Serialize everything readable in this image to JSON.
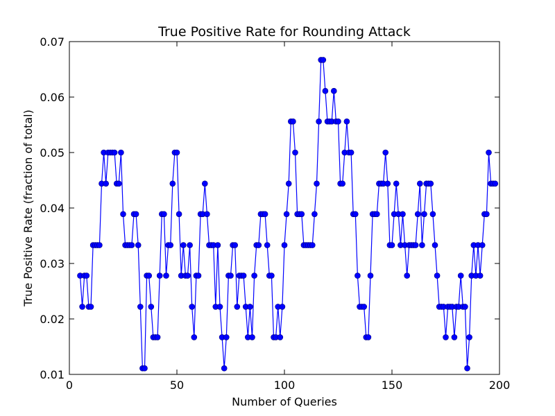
{
  "chart_data": {
    "type": "line",
    "title": "True Positive Rate for Rounding Attack",
    "xlabel": "Number of Queries",
    "ylabel": "True Positive Rate (fraction of total)",
    "xlim": [
      0,
      200
    ],
    "ylim": [
      0.01,
      0.07
    ],
    "xticks": [
      "0",
      "50",
      "100",
      "150",
      "200"
    ],
    "yticks": [
      "0.01",
      "0.02",
      "0.03",
      "0.04",
      "0.05",
      "0.06",
      "0.07"
    ],
    "grid": false,
    "legend": false,
    "marker": "circle",
    "color": "#0000ff",
    "x_start": 5,
    "x_step": 1,
    "values": [
      0.0278,
      0.0222,
      0.0278,
      0.0278,
      0.0222,
      0.0222,
      0.0333,
      0.0333,
      0.0333,
      0.0333,
      0.0444,
      0.05,
      0.0444,
      0.05,
      0.05,
      0.05,
      0.05,
      0.0444,
      0.0444,
      0.05,
      0.0389,
      0.0333,
      0.0333,
      0.0333,
      0.0333,
      0.0389,
      0.0389,
      0.0333,
      0.0222,
      0.0111,
      0.0111,
      0.0278,
      0.0278,
      0.0222,
      0.0167,
      0.0167,
      0.0167,
      0.0278,
      0.0389,
      0.0389,
      0.0278,
      0.0333,
      0.0333,
      0.0444,
      0.05,
      0.05,
      0.0389,
      0.0278,
      0.0333,
      0.0278,
      0.0278,
      0.0333,
      0.0222,
      0.0167,
      0.0278,
      0.0278,
      0.0389,
      0.0389,
      0.0444,
      0.0389,
      0.0333,
      0.0333,
      0.0333,
      0.0222,
      0.0333,
      0.0222,
      0.0167,
      0.0111,
      0.0167,
      0.0278,
      0.0278,
      0.0333,
      0.0333,
      0.0222,
      0.0278,
      0.0278,
      0.0278,
      0.0222,
      0.0167,
      0.0222,
      0.0167,
      0.0278,
      0.0333,
      0.0333,
      0.0389,
      0.0389,
      0.0389,
      0.0333,
      0.0278,
      0.0278,
      0.0167,
      0.0167,
      0.0222,
      0.0167,
      0.0222,
      0.0333,
      0.0389,
      0.0444,
      0.0556,
      0.0556,
      0.05,
      0.0389,
      0.0389,
      0.0389,
      0.0333,
      0.0333,
      0.0333,
      0.0333,
      0.0333,
      0.0389,
      0.0444,
      0.0556,
      0.0667,
      0.0667,
      0.0611,
      0.0556,
      0.0556,
      0.0556,
      0.0611,
      0.0556,
      0.0556,
      0.0444,
      0.0444,
      0.05,
      0.0556,
      0.05,
      0.05,
      0.0389,
      0.0389,
      0.0278,
      0.0222,
      0.0222,
      0.0222,
      0.0167,
      0.0167,
      0.0278,
      0.0389,
      0.0389,
      0.0389,
      0.0444,
      0.0444,
      0.0444,
      0.05,
      0.0444,
      0.0333,
      0.0333,
      0.0389,
      0.0444,
      0.0389,
      0.0333,
      0.0389,
      0.0333,
      0.0278,
      0.0333,
      0.0333,
      0.0333,
      0.0333,
      0.0389,
      0.0444,
      0.0333,
      0.0389,
      0.0444,
      0.0444,
      0.0444,
      0.0389,
      0.0333,
      0.0278,
      0.0222,
      0.0222,
      0.0222,
      0.0167,
      0.0222,
      0.0222,
      0.0222,
      0.0167,
      0.0222,
      0.0222,
      0.0278,
      0.0222,
      0.0222,
      0.0111,
      0.0167,
      0.0278,
      0.0333,
      0.0278,
      0.0333,
      0.0278,
      0.0333,
      0.0389,
      0.0389,
      0.05,
      0.0444,
      0.0444,
      0.0444
    ]
  }
}
